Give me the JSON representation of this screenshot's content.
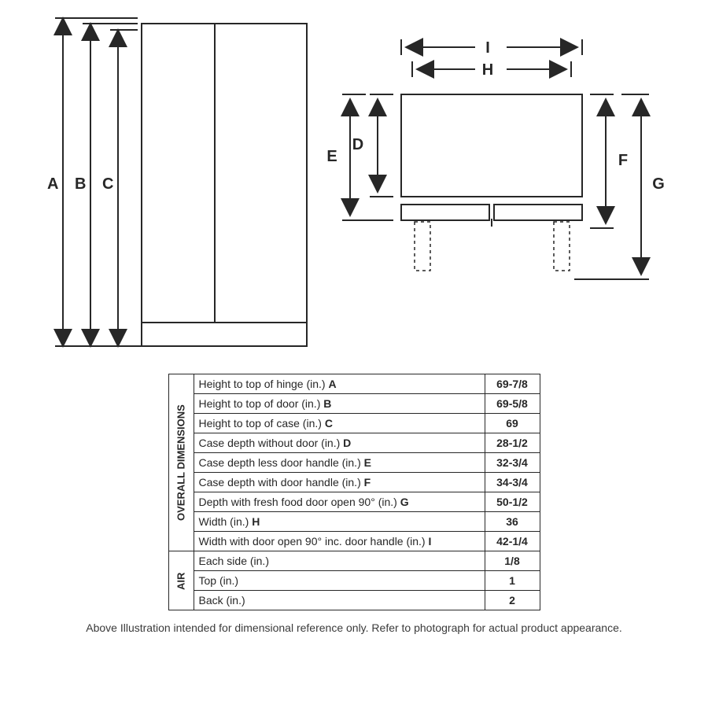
{
  "colors": {
    "line": "#272727",
    "bg": "#ffffff",
    "text": "#272727"
  },
  "diagram": {
    "stroke_width": 2,
    "label_fontsize": 20,
    "label_fontweight": 700,
    "front": {
      "labels": {
        "A": "A",
        "B": "B",
        "C": "C"
      }
    },
    "top": {
      "labels": {
        "D": "D",
        "E": "E",
        "F": "F",
        "G": "G",
        "H": "H",
        "I": "I"
      }
    }
  },
  "table": {
    "sections": [
      {
        "title": "OVERALL\nDIMENSIONS",
        "rows": [
          {
            "label": "Height to top of hinge (in.) ",
            "bold": "A",
            "value": "69-7/8"
          },
          {
            "label": "Height to top of door (in.) ",
            "bold": "B",
            "value": "69-5/8"
          },
          {
            "label": "Height to top of case (in.) ",
            "bold": "C",
            "value": "69"
          },
          {
            "label": "Case depth without door (in.) ",
            "bold": "D",
            "value": "28-1/2"
          },
          {
            "label": "Case depth less door handle (in.) ",
            "bold": "E",
            "value": "32-3/4"
          },
          {
            "label": "Case depth with door handle (in.) ",
            "bold": "F",
            "value": "34-3/4"
          },
          {
            "label": "Depth with fresh food door open 90° (in.) ",
            "bold": "G",
            "value": "50-1/2"
          },
          {
            "label": "Width (in.) ",
            "bold": "H",
            "value": "36"
          },
          {
            "label": "Width with door open 90° inc. door handle (in.) ",
            "bold": "I",
            "value": "42-1/4"
          }
        ]
      },
      {
        "title": "AIR",
        "rows": [
          {
            "label": "Each side (in.)",
            "bold": "",
            "value": "1/8"
          },
          {
            "label": "Top (in.)",
            "bold": "",
            "value": "1"
          },
          {
            "label": "Back (in.)",
            "bold": "",
            "value": "2"
          }
        ]
      }
    ]
  },
  "footnote": "Above Illustration intended for dimensional reference only. Refer to photograph for actual product appearance."
}
